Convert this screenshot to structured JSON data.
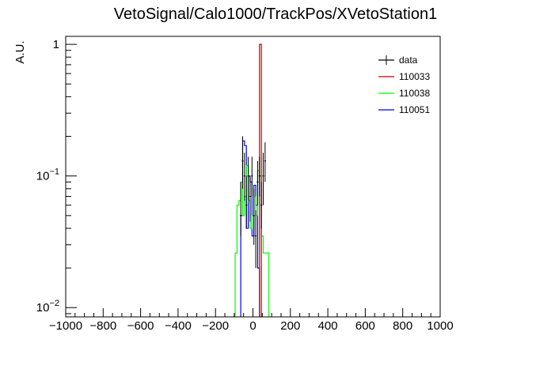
{
  "chart_data": {
    "type": "histogram",
    "title": "VetoSignal/Calo1000/TrackPos/XVetoStation1",
    "xlabel": "",
    "ylabel": "A.U.",
    "xlim": [
      -1000,
      1000
    ],
    "ylim": [
      0.0085,
      1.15
    ],
    "yscale": "log",
    "grid": false,
    "legend_position": "top-right",
    "x_ticks": [
      -1000,
      -800,
      -600,
      -400,
      -200,
      0,
      200,
      400,
      600,
      800,
      1000
    ],
    "x_tick_labels": [
      "−1000",
      "−800",
      "−600",
      "−400",
      "−200",
      "0",
      "200",
      "400",
      "600",
      "800",
      "1000"
    ],
    "y_ticks": [
      {
        "value": 0.01,
        "base": "10",
        "exp": "−2"
      },
      {
        "value": 0.1,
        "base": "10",
        "exp": "−1"
      },
      {
        "value": 1,
        "base": "1",
        "exp": ""
      }
    ],
    "bin_width": 10,
    "series": [
      {
        "name": "110051",
        "color": "#0000ff",
        "style": "step",
        "bins": [
          {
            "x": -60,
            "y": 0.05
          },
          {
            "x": -50,
            "y": 0.185
          },
          {
            "x": -40,
            "y": 0.17
          },
          {
            "x": -30,
            "y": 0.04
          },
          {
            "x": -20,
            "y": 0.1
          },
          {
            "x": -10,
            "y": 0.09
          },
          {
            "x": 0,
            "y": 0.035
          },
          {
            "x": 10,
            "y": 0.085
          },
          {
            "x": 20,
            "y": 0.06
          },
          {
            "x": 30,
            "y": 0.02
          }
        ]
      },
      {
        "name": "110038",
        "color": "#00ff00",
        "style": "step",
        "bins": [
          {
            "x": -90,
            "y": 0.026
          },
          {
            "x": -80,
            "y": 0.06
          },
          {
            "x": -70,
            "y": 0.065
          },
          {
            "x": -60,
            "y": 0.09
          },
          {
            "x": -50,
            "y": 0.05
          },
          {
            "x": -40,
            "y": 0.07
          },
          {
            "x": -30,
            "y": 0.12
          },
          {
            "x": -20,
            "y": 0.065
          },
          {
            "x": -10,
            "y": 0.04
          },
          {
            "x": 0,
            "y": 0.05
          },
          {
            "x": 10,
            "y": 0.07
          },
          {
            "x": 20,
            "y": 0.05
          },
          {
            "x": 30,
            "y": 0.11
          },
          {
            "x": 40,
            "y": 0.1
          },
          {
            "x": 50,
            "y": 0.035
          },
          {
            "x": 60,
            "y": 0.026
          },
          {
            "x": 70,
            "y": 0.026
          },
          {
            "x": 80,
            "y": 0.026
          }
        ]
      },
      {
        "name": "110033",
        "color": "#c00000",
        "style": "step",
        "bins": [
          {
            "x": 40,
            "y": 1.0
          }
        ]
      },
      {
        "name": "data",
        "color": "#000000",
        "style": "errorbar",
        "points": [
          {
            "x": -65,
            "y": 0.05,
            "lo": 0.035,
            "hi": 0.09
          },
          {
            "x": -55,
            "y": 0.13,
            "lo": 0.08,
            "hi": 0.2
          },
          {
            "x": -45,
            "y": 0.1,
            "lo": 0.065,
            "hi": 0.15
          },
          {
            "x": -35,
            "y": 0.06,
            "lo": 0.04,
            "hi": 0.1
          },
          {
            "x": -25,
            "y": 0.1,
            "lo": 0.065,
            "hi": 0.14
          },
          {
            "x": -15,
            "y": 0.07,
            "lo": 0.045,
            "hi": 0.1
          },
          {
            "x": -5,
            "y": 0.1,
            "lo": 0.07,
            "hi": 0.14
          },
          {
            "x": 5,
            "y": 0.05,
            "lo": 0.03,
            "hi": 0.08
          },
          {
            "x": 15,
            "y": 0.035,
            "lo": 0.02,
            "hi": 0.055
          },
          {
            "x": 25,
            "y": 0.09,
            "lo": 0.06,
            "hi": 0.13
          },
          {
            "x": 35,
            "y": 0.1,
            "lo": 0.07,
            "hi": 0.14
          },
          {
            "x": 45,
            "y": 0.06,
            "lo": 0.04,
            "hi": 0.09
          },
          {
            "x": 55,
            "y": 0.1,
            "lo": 0.06,
            "hi": 0.15
          },
          {
            "x": 65,
            "y": 0.13,
            "lo": 0.09,
            "hi": 0.18
          }
        ]
      }
    ],
    "legend": [
      {
        "name": "data",
        "color": "#000000"
      },
      {
        "name": "110033",
        "color": "#c00000"
      },
      {
        "name": "110038",
        "color": "#00ff00"
      },
      {
        "name": "110051",
        "color": "#0000ff"
      }
    ]
  }
}
